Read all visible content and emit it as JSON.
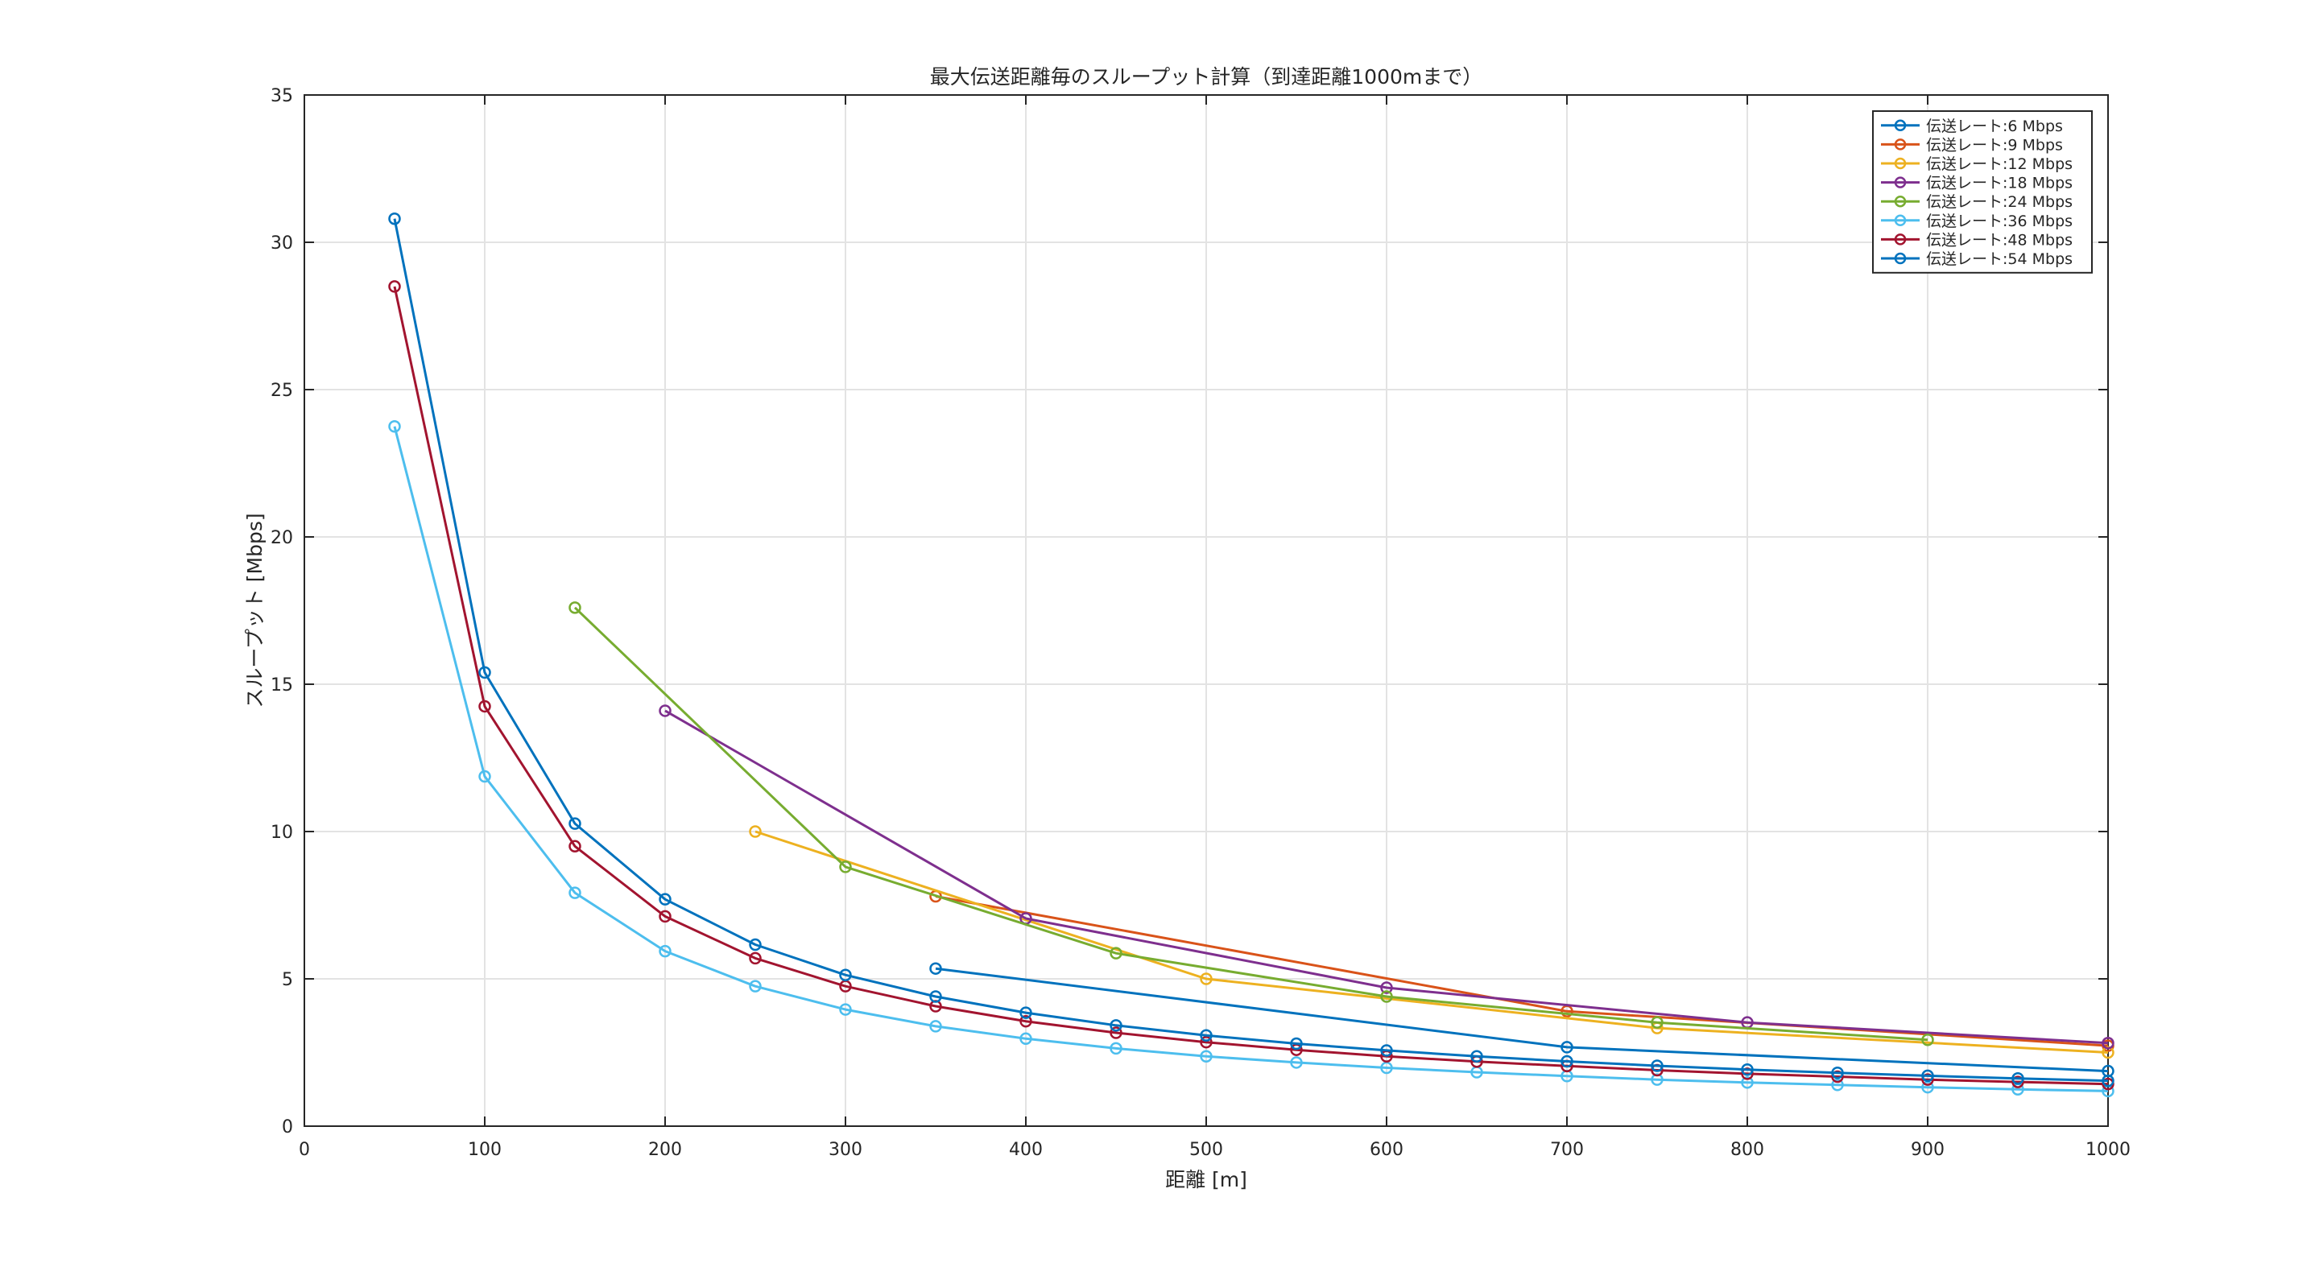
{
  "chart_data": {
    "type": "line",
    "title": "最大伝送距離毎のスループット計算（到達距離1000mまで）",
    "xlabel": "距離 [m]",
    "ylabel": "スループット [Mbps]",
    "xlim": [
      0,
      1000
    ],
    "ylim": [
      0,
      35
    ],
    "xticks": [
      0,
      100,
      200,
      300,
      400,
      500,
      600,
      700,
      800,
      900,
      1000
    ],
    "yticks": [
      0,
      5,
      10,
      15,
      20,
      25,
      30,
      35
    ],
    "grid": true,
    "legend_position": "top-right",
    "marker": "circle",
    "series": [
      {
        "name": "伝送レート:6 Mbps",
        "color": "#0072BD",
        "x": [
          350,
          700,
          1000
        ],
        "values": [
          5.35,
          2.68,
          1.87
        ]
      },
      {
        "name": "伝送レート:9 Mbps",
        "color": "#D95319",
        "x": [
          350,
          700,
          1000
        ],
        "values": [
          7.8,
          3.9,
          2.73
        ]
      },
      {
        "name": "伝送レート:12 Mbps",
        "color": "#EDB120",
        "x": [
          250,
          500,
          750,
          1000
        ],
        "values": [
          10.0,
          5.0,
          3.33,
          2.5
        ]
      },
      {
        "name": "伝送レート:18 Mbps",
        "color": "#7E2F8E",
        "x": [
          200,
          400,
          600,
          800,
          1000
        ],
        "values": [
          14.1,
          7.05,
          4.7,
          3.52,
          2.82
        ]
      },
      {
        "name": "伝送レート:24 Mbps",
        "color": "#77AC30",
        "x": [
          150,
          300,
          450,
          600,
          750,
          900
        ],
        "values": [
          17.6,
          8.8,
          5.87,
          4.4,
          3.52,
          2.93
        ]
      },
      {
        "name": "伝送レート:36 Mbps",
        "color": "#4DBEEE",
        "x": [
          50,
          100,
          150,
          200,
          250,
          300,
          350,
          400,
          450,
          500,
          550,
          600,
          650,
          700,
          750,
          800,
          850,
          900,
          950,
          1000
        ],
        "values": [
          23.75,
          11.87,
          7.92,
          5.94,
          4.75,
          3.96,
          3.39,
          2.97,
          2.64,
          2.37,
          2.16,
          1.98,
          1.83,
          1.7,
          1.58,
          1.48,
          1.4,
          1.32,
          1.25,
          1.19
        ]
      },
      {
        "name": "伝送レート:48 Mbps",
        "color": "#A2142F",
        "x": [
          50,
          100,
          150,
          200,
          250,
          300,
          350,
          400,
          450,
          500,
          550,
          600,
          650,
          700,
          750,
          800,
          850,
          900,
          950,
          1000
        ],
        "values": [
          28.5,
          14.25,
          9.5,
          7.12,
          5.7,
          4.75,
          4.07,
          3.56,
          3.17,
          2.85,
          2.59,
          2.37,
          2.19,
          2.04,
          1.9,
          1.78,
          1.68,
          1.58,
          1.5,
          1.43
        ]
      },
      {
        "name": "伝送レート:54 Mbps",
        "color": "#0072BD",
        "x": [
          50,
          100,
          150,
          200,
          250,
          300,
          350,
          400,
          450,
          500,
          550,
          600,
          650,
          700,
          750,
          800,
          850,
          900,
          950,
          1000
        ],
        "values": [
          30.8,
          15.4,
          10.27,
          7.7,
          6.16,
          5.13,
          4.4,
          3.85,
          3.42,
          3.08,
          2.8,
          2.57,
          2.37,
          2.2,
          2.05,
          1.92,
          1.81,
          1.71,
          1.62,
          1.54
        ]
      }
    ]
  }
}
